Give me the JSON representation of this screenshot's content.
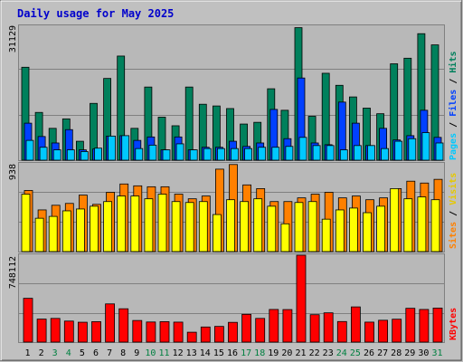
{
  "title": "Daily usage for May 2025",
  "colors": {
    "background": "#c0c0c0",
    "panel": "#b8b8b8",
    "title": "#0000cc",
    "hits": "#00805c",
    "files": "#0040ff",
    "pages": "#00c8ff",
    "visits": "#ffff00",
    "sites": "#ff8000",
    "kbytes": "#ff0000",
    "weekend_day": "#008040",
    "weekday_day": "#000000"
  },
  "legend": {
    "pages": "Pages",
    "files": "Files",
    "hits": "Hits",
    "sites": "Sites",
    "visits": "Visits",
    "kbytes": "KBytes",
    "sep": "/"
  },
  "axis_max": {
    "hits": "31129",
    "visits": "938",
    "kbytes": "748112"
  },
  "chart_data": {
    "type": "bar",
    "title": "Daily usage for May 2025",
    "categories": [
      "1",
      "2",
      "3",
      "4",
      "5",
      "6",
      "7",
      "8",
      "9",
      "10",
      "11",
      "12",
      "13",
      "14",
      "15",
      "16",
      "17",
      "18",
      "19",
      "20",
      "21",
      "22",
      "23",
      "24",
      "25",
      "26",
      "27",
      "28",
      "29",
      "30",
      "31"
    ],
    "weekend_days": [
      "3",
      "4",
      "10",
      "11",
      "17",
      "18",
      "24",
      "25",
      "31"
    ],
    "panels": [
      {
        "name": "hits-files-pages",
        "ymax": 31129,
        "series": [
          {
            "name": "Hits",
            "values": [
              21600,
              11100,
              7400,
              9600,
              4400,
              13200,
              19000,
              24200,
              7400,
              17000,
              10000,
              8000,
              17000,
              13000,
              12600,
              12000,
              8400,
              8800,
              16600,
              11600,
              30800,
              10200,
              20200,
              17400,
              14700,
              12100,
              10800,
              22400,
              23700,
              29400,
              26800
            ]
          },
          {
            "name": "Files",
            "values": [
              8600,
              5500,
              4000,
              7100,
              2400,
              2600,
              5600,
              5700,
              4600,
              5400,
              2400,
              5400,
              2400,
              3000,
              3000,
              4400,
              3200,
              4000,
              11800,
              5000,
              19100,
              4000,
              3600,
              13500,
              8600,
              3400,
              7400,
              4700,
              5700,
              11600,
              5300
            ]
          },
          {
            "name": "Pages",
            "values": [
              4600,
              3000,
              2400,
              2400,
              2000,
              2800,
              5600,
              5700,
              2700,
              3500,
              2400,
              3800,
              2400,
              2700,
              2700,
              2700,
              2700,
              3000,
              3000,
              3200,
              5300,
              3400,
              3400,
              2400,
              3400,
              3400,
              2700,
              4400,
              5000,
              6400,
              4000
            ]
          }
        ]
      },
      {
        "name": "visits-sites",
        "ymax": 938,
        "series": [
          {
            "name": "Visits",
            "values": [
              620,
              360,
              380,
              440,
              460,
              490,
              540,
              600,
              600,
              570,
              620,
              540,
              530,
              540,
              400,
              560,
              540,
              570,
              490,
              300,
              530,
              540,
              350,
              450,
              470,
              420,
              490,
              680,
              570,
              590,
              560
            ]
          },
          {
            "name": "Sites",
            "values": [
              660,
              450,
              500,
              520,
              610,
              510,
              640,
              730,
              710,
              700,
              700,
              620,
              570,
              600,
              890,
              940,
              720,
              680,
              540,
              540,
              580,
              620,
              640,
              580,
              600,
              560,
              580,
              680,
              760,
              740,
              780
            ]
          }
        ]
      },
      {
        "name": "kbytes",
        "ymax": 748112,
        "series": [
          {
            "name": "KBytes",
            "values": [
              377000,
              198000,
              204000,
              181000,
              171000,
              176000,
              329000,
              287000,
              186000,
              173000,
              176000,
              172000,
              85000,
              130000,
              135000,
              170000,
              239000,
              204000,
              281000,
              280000,
              748000,
              236000,
              252000,
              177000,
              303000,
              172000,
              188000,
              197000,
              291000,
              281000,
              293000
            ]
          }
        ]
      }
    ]
  }
}
